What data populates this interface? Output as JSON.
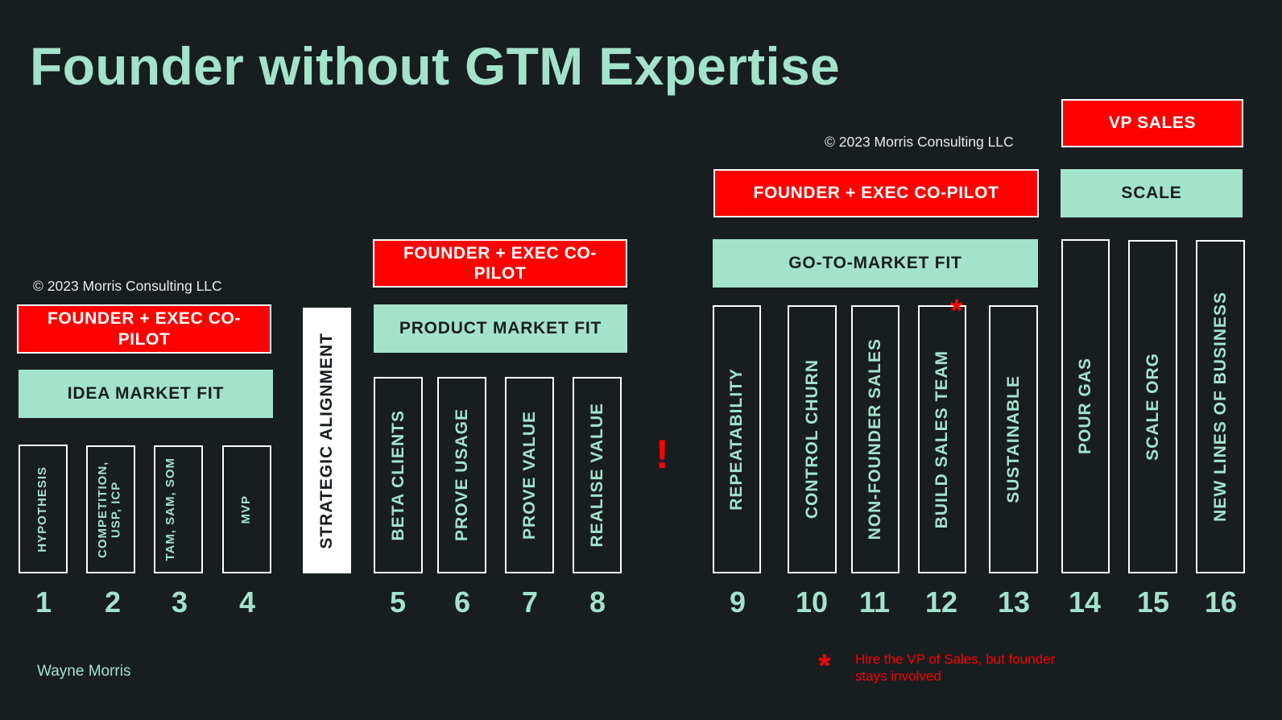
{
  "title": "Founder without GTM Expertise",
  "copyright": "© 2023 Morris Consulting LLC",
  "author": "Wayne Morris",
  "copilot_labels": {
    "idea": "FOUNDER + EXEC CO-PILOT",
    "product": "FOUNDER + EXEC CO-PILOT",
    "gtm": "FOUNDER + EXEC CO-PILOT",
    "scale": "VP SALES"
  },
  "fits": {
    "idea": "IDEA MARKET FIT",
    "product": "PRODUCT MARKET FIT",
    "gtm": "GO-TO-MARKET FIT",
    "scale": "SCALE"
  },
  "strategic_alignment": "STRATEGIC ALIGNMENT",
  "steps": [
    {
      "label": "HYPOTHESIS",
      "num": "1"
    },
    {
      "label": "COMPETITION, USP, ICP",
      "num": "2"
    },
    {
      "label": "TAM, SAM, SOM",
      "num": "3"
    },
    {
      "label": "MVP",
      "num": "4"
    },
    {
      "label": "BETA CLIENTS",
      "num": "5"
    },
    {
      "label": "PROVE USAGE",
      "num": "6"
    },
    {
      "label": "PROVE VALUE",
      "num": "7"
    },
    {
      "label": "REALISE VALUE",
      "num": "8"
    },
    {
      "label": "REPEATABILITY",
      "num": "9"
    },
    {
      "label": "CONTROL CHURN",
      "num": "10"
    },
    {
      "label": "NON-FOUNDER SALES",
      "num": "11"
    },
    {
      "label": "BUILD SALES TEAM",
      "num": "12"
    },
    {
      "label": "SUSTAINABLE",
      "num": "13"
    },
    {
      "label": "POUR GAS",
      "num": "14"
    },
    {
      "label": "SCALE ORG",
      "num": "15"
    },
    {
      "label": "NEW LINES OF BUSINESS",
      "num": "16"
    }
  ],
  "exclamation": "!",
  "asterisk": "*",
  "footnote": "Hire the VP of Sales, but founder stays involved"
}
